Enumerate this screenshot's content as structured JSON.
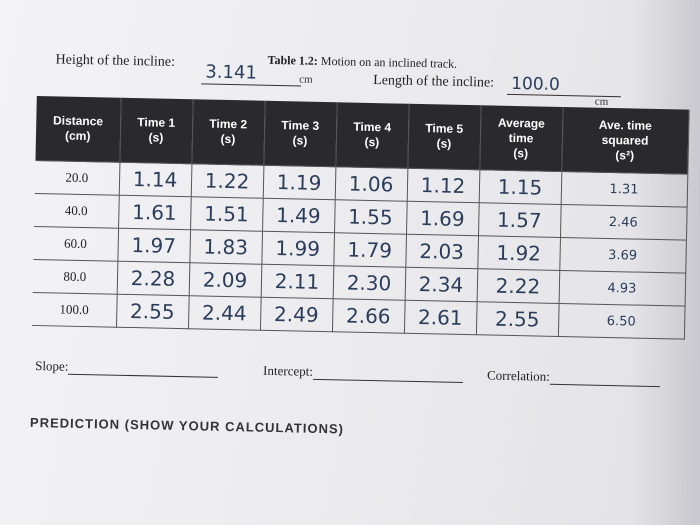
{
  "caption": {
    "bold": "Table 1.2:",
    "text": " Motion on an inclined track."
  },
  "height": {
    "label": "Height of the incline:",
    "value": "3.141",
    "unit": "cm"
  },
  "length": {
    "label": "Length of the incline:",
    "value": "100.0",
    "unit": "cm"
  },
  "table": {
    "headers": [
      [
        "Distance",
        "(cm)"
      ],
      [
        "Time 1",
        "(s)"
      ],
      [
        "Time 2",
        "(s)"
      ],
      [
        "Time 3",
        "(s)"
      ],
      [
        "Time 4",
        "(s)"
      ],
      [
        "Time 5",
        "(s)"
      ],
      [
        "Average",
        "time",
        "(s)"
      ],
      [
        "Ave. time",
        "squared",
        "(s²)"
      ]
    ],
    "rows": [
      [
        "20.0",
        "1.14",
        "1.22",
        "1.19",
        "1.06",
        "1.12",
        "1.15",
        "1.31"
      ],
      [
        "40.0",
        "1.61",
        "1.51",
        "1.49",
        "1.55",
        "1.69",
        "1.57",
        "2.46"
      ],
      [
        "60.0",
        "1.97",
        "1.83",
        "1.99",
        "1.79",
        "2.03",
        "1.92",
        "3.69"
      ],
      [
        "80.0",
        "2.28",
        "2.09",
        "2.11",
        "2.30",
        "2.34",
        "2.22",
        "4.93"
      ],
      [
        "100.0",
        "2.55",
        "2.44",
        "2.49",
        "2.66",
        "2.61",
        "2.55",
        "6.50"
      ]
    ]
  },
  "bottom": {
    "slope": "Slope:",
    "intercept": "Intercept:",
    "correlation": "Correlation:"
  },
  "prediction": "PREDICTION (SHOW YOUR CALCULATIONS)"
}
